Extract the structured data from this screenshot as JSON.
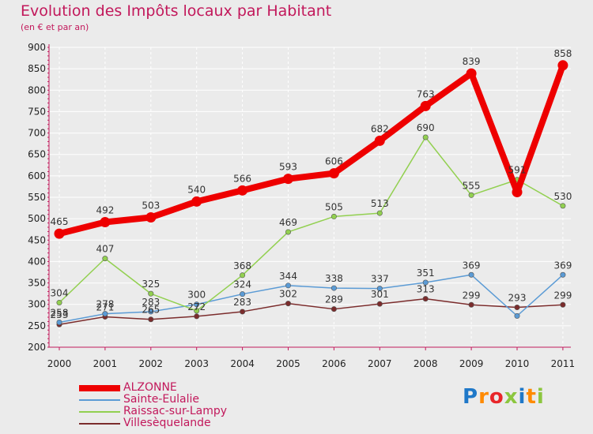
{
  "header": {
    "title": "Evolution des Impôts locaux par Habitant",
    "subtitle": "(en € et par an)"
  },
  "logo": {
    "text": "Proxiti",
    "letter_colors": [
      "#1f78c8",
      "#ff8a00",
      "#e8262a",
      "#8cc63f",
      "#1f78c8",
      "#ff8a00",
      "#8cc63f"
    ]
  },
  "chart_data": {
    "type": "line",
    "title": "Evolution des Impôts locaux par Habitant",
    "subtitle": "(en € et par an)",
    "xlabel": "",
    "ylabel": "",
    "categories": [
      "2000",
      "2001",
      "2002",
      "2003",
      "2004",
      "2005",
      "2006",
      "2007",
      "2008",
      "2009",
      "2010",
      "2011"
    ],
    "ylim": [
      200,
      900
    ],
    "yticks": [
      200,
      250,
      300,
      350,
      400,
      450,
      500,
      550,
      600,
      650,
      700,
      750,
      800,
      850,
      900
    ],
    "grid": true,
    "legend_position": "bottom-left",
    "series": [
      {
        "name": "ALZONNE",
        "color": "#ee0000",
        "values": [
          465,
          492,
          503,
          540,
          566,
          593,
          606,
          682,
          763,
          839,
          562,
          858
        ],
        "labels": [
          "465",
          "492",
          "503",
          "540",
          "566",
          "593",
          "606",
          "682",
          "763",
          "839",
          "",
          "858"
        ]
      },
      {
        "name": "Sainte-Eulalie",
        "color": "#5b9bd5",
        "values": [
          258,
          278,
          283,
          300,
          324,
          344,
          338,
          337,
          351,
          369,
          273,
          369
        ],
        "labels": [
          "258",
          "278",
          "283",
          "300",
          "324",
          "344",
          "338",
          "337",
          "351",
          "369",
          "",
          "369"
        ]
      },
      {
        "name": "Raissac-sur-Lampy",
        "color": "#92d050",
        "values": [
          304,
          407,
          325,
          285,
          368,
          469,
          505,
          513,
          690,
          555,
          591,
          530
        ],
        "labels": [
          "304",
          "407",
          "325",
          "",
          "368",
          "469",
          "505",
          "513",
          "690",
          "555",
          "591",
          "530"
        ]
      },
      {
        "name": "Villesèquelande",
        "color": "#7b2c2c",
        "values": [
          253,
          271,
          265,
          272,
          283,
          302,
          289,
          301,
          313,
          299,
          293,
          299
        ],
        "labels": [
          "253",
          "271",
          "265",
          "272",
          "283",
          "302",
          "289",
          "301",
          "313",
          "299",
          "293",
          "299"
        ]
      }
    ]
  }
}
